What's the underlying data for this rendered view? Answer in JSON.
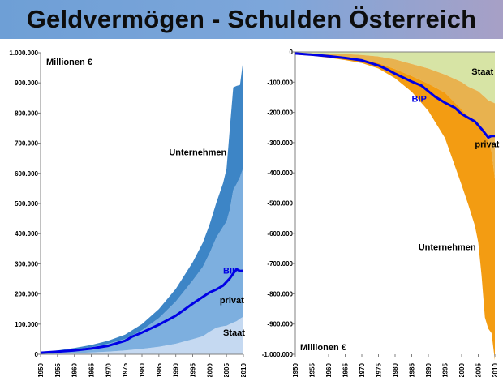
{
  "title": "Geldvermögen - Schulden Österreich",
  "chart_data": [
    {
      "type": "area",
      "stacked": true,
      "unit_label": "Millionen €",
      "x": [
        1950,
        1955,
        1960,
        1965,
        1970,
        1975,
        1980,
        1985,
        1990,
        1995,
        1998,
        2000,
        2002,
        2004,
        2005,
        2006,
        2007,
        2008,
        2009,
        2010
      ],
      "series": [
        {
          "name": "Staat",
          "color": "#c5d9f1",
          "values": [
            0,
            2000,
            4000,
            6000,
            9000,
            13000,
            18000,
            25000,
            35000,
            50000,
            60000,
            75000,
            88000,
            93000,
            95000,
            100000,
            105000,
            110000,
            118000,
            125000
          ]
        },
        {
          "name": "privat",
          "color": "#7dafdf",
          "values": [
            5000,
            8000,
            12000,
            18000,
            26000,
            38000,
            62000,
            95000,
            140000,
            195000,
            230000,
            260000,
            300000,
            330000,
            345000,
            380000,
            440000,
            455000,
            470000,
            495000
          ]
        },
        {
          "name": "Unternehmen",
          "color": "#3d85c6",
          "values": [
            2000,
            3000,
            5000,
            7000,
            10000,
            14000,
            20000,
            30000,
            42000,
            60000,
            80000,
            95000,
            115000,
            145000,
            175000,
            270000,
            340000,
            325000,
            305000,
            360000
          ]
        }
      ],
      "line": {
        "name": "BIP",
        "color": "#0000e6",
        "x": [
          1950,
          1955,
          1960,
          1965,
          1970,
          1975,
          1977,
          1980,
          1985,
          1990,
          1995,
          2000,
          2002,
          2004,
          2006,
          2007,
          2008,
          2009,
          2010
        ],
        "values": [
          5000,
          9000,
          13000,
          19000,
          28000,
          45000,
          58000,
          72000,
          98000,
          128000,
          168000,
          205000,
          215000,
          228000,
          252000,
          268000,
          282000,
          276000,
          277000
        ]
      },
      "xlim": [
        1950,
        2010
      ],
      "ylim": [
        0,
        1000000
      ],
      "y_ticks": [
        0,
        100000,
        200000,
        300000,
        400000,
        500000,
        600000,
        700000,
        800000,
        900000,
        1000000
      ],
      "y_tick_labels": [
        "0",
        "100.000",
        "200.000",
        "300.000",
        "400.000",
        "500.000",
        "600.000",
        "700.000",
        "800.000",
        "900.000",
        "1.000.000"
      ],
      "x_ticks": [
        1950,
        1955,
        1960,
        1965,
        1970,
        1975,
        1980,
        1985,
        1990,
        1995,
        2000,
        2005,
        2010
      ],
      "x_tick_labels": [
        "1950",
        "1955",
        "1960",
        "1965",
        "1970",
        "1975",
        "1980",
        "1985",
        "1990",
        "1995",
        "2000",
        "2005",
        "2010"
      ],
      "annotations": [
        {
          "text": "Unternehmen",
          "x": 1988,
          "y": 660000,
          "color": "#000000"
        },
        {
          "text": "BIP",
          "x": 2004,
          "y": 268000,
          "color": "#0000e6"
        },
        {
          "text": "privat",
          "x": 2003,
          "y": 170000,
          "color": "#000000"
        },
        {
          "text": "Staat",
          "x": 2004,
          "y": 62000,
          "color": "#000000"
        }
      ]
    },
    {
      "type": "area",
      "stacked": true,
      "unit_label": "Millionen €",
      "x": [
        1950,
        1955,
        1960,
        1965,
        1970,
        1975,
        1980,
        1985,
        1990,
        1995,
        2000,
        2002,
        2004,
        2005,
        2006,
        2007,
        2008,
        2009,
        2010
      ],
      "series": [
        {
          "name": "Staat",
          "color": "#d7e4a5",
          "values": [
            -4000,
            -5000,
            -6000,
            -7000,
            -10000,
            -15000,
            -25000,
            -40000,
            -55000,
            -75000,
            -100000,
            -115000,
            -125000,
            -130000,
            -140000,
            -150000,
            -160000,
            -165000,
            -170000
          ]
        },
        {
          "name": "privat",
          "color": "#e8b24f",
          "values": [
            -3000,
            -5000,
            -8000,
            -12000,
            -15000,
            -22000,
            -32000,
            -40000,
            -50000,
            -60000,
            -90000,
            -100000,
            -110000,
            -115000,
            -120000,
            -128000,
            -135000,
            -165000,
            -250000
          ]
        },
        {
          "name": "Unternehmen",
          "color": "#f39c12",
          "values": [
            -2000,
            -3000,
            -5000,
            -8000,
            -12000,
            -18000,
            -30000,
            -52000,
            -90000,
            -150000,
            -250000,
            -290000,
            -340000,
            -385000,
            -480000,
            -600000,
            -620000,
            -600000,
            -600000
          ]
        }
      ],
      "line": {
        "name": "BIP",
        "color": "#0000e6",
        "x": [
          1950,
          1955,
          1960,
          1965,
          1970,
          1975,
          1978,
          1980,
          1985,
          1988,
          1990,
          1992,
          1995,
          1998,
          2000,
          2002,
          2004,
          2006,
          2008,
          2009,
          2010
        ],
        "values": [
          -5000,
          -9000,
          -14000,
          -20000,
          -28000,
          -45000,
          -60000,
          -72000,
          -98000,
          -112000,
          -130000,
          -148000,
          -168000,
          -185000,
          -205000,
          -218000,
          -230000,
          -255000,
          -283000,
          -278000,
          -278000
        ]
      },
      "xlim": [
        1950,
        2010
      ],
      "ylim": [
        -1000000,
        0
      ],
      "y_ticks": [
        0,
        -100000,
        -200000,
        -300000,
        -400000,
        -500000,
        -600000,
        -700000,
        -800000,
        -900000,
        -1000000
      ],
      "y_tick_labels": [
        "0",
        "-100.000",
        "-200.000",
        "-300.000",
        "-400.000",
        "-500.000",
        "-600.000",
        "-700.000",
        "-800.000",
        "-900.000",
        "-1.000.000"
      ],
      "x_ticks": [
        1950,
        1955,
        1960,
        1965,
        1970,
        1975,
        1980,
        1985,
        1990,
        1995,
        2000,
        2005,
        2010
      ],
      "x_tick_labels": [
        "1950",
        "1955",
        "1960",
        "1965",
        "1970",
        "1975",
        "1980",
        "1985",
        "1990",
        "1995",
        "2000",
        "2005",
        "2010"
      ],
      "annotations": [
        {
          "text": "Staat",
          "x": 2003,
          "y": -75000,
          "color": "#000000"
        },
        {
          "text": "BIP",
          "x": 1985,
          "y": -165000,
          "color": "#0000e6"
        },
        {
          "text": "privat",
          "x": 2004,
          "y": -315000,
          "color": "#000000"
        },
        {
          "text": "Unternehmen",
          "x": 1987,
          "y": -655000,
          "color": "#000000"
        }
      ]
    }
  ]
}
